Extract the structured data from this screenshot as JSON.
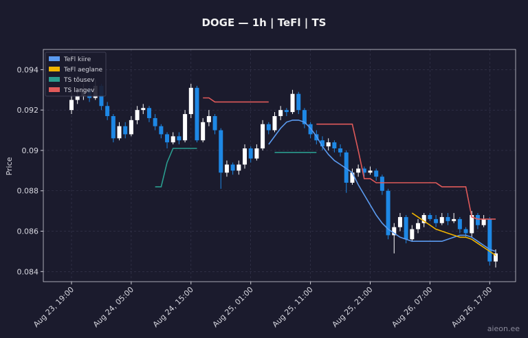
{
  "chart_data": {
    "type": "candlestick",
    "title": "DOGE — 1h  |  TeFl  |  TS",
    "ylabel": "Price",
    "watermark": "aieon.ee",
    "x": [
      "Aug 23, 19:00",
      "Aug 23, 20:00",
      "Aug 23, 21:00",
      "Aug 23, 22:00",
      "Aug 23, 23:00",
      "Aug 24, 00:00",
      "Aug 24, 01:00",
      "Aug 24, 02:00",
      "Aug 24, 03:00",
      "Aug 24, 04:00",
      "Aug 24, 05:00",
      "Aug 24, 06:00",
      "Aug 24, 07:00",
      "Aug 24, 08:00",
      "Aug 24, 09:00",
      "Aug 24, 10:00",
      "Aug 24, 11:00",
      "Aug 24, 12:00",
      "Aug 24, 13:00",
      "Aug 24, 14:00",
      "Aug 24, 15:00",
      "Aug 24, 16:00",
      "Aug 24, 17:00",
      "Aug 24, 18:00",
      "Aug 24, 19:00",
      "Aug 24, 20:00",
      "Aug 24, 21:00",
      "Aug 24, 22:00",
      "Aug 24, 23:00",
      "Aug 25, 00:00",
      "Aug 25, 01:00",
      "Aug 25, 02:00",
      "Aug 25, 03:00",
      "Aug 25, 04:00",
      "Aug 25, 05:00",
      "Aug 25, 06:00",
      "Aug 25, 07:00",
      "Aug 25, 08:00",
      "Aug 25, 09:00",
      "Aug 25, 10:00",
      "Aug 25, 11:00",
      "Aug 25, 12:00",
      "Aug 25, 13:00",
      "Aug 25, 14:00",
      "Aug 25, 15:00",
      "Aug 25, 16:00",
      "Aug 25, 17:00",
      "Aug 25, 18:00",
      "Aug 25, 19:00",
      "Aug 25, 20:00",
      "Aug 25, 21:00",
      "Aug 25, 22:00",
      "Aug 25, 23:00",
      "Aug 26, 00:00",
      "Aug 26, 01:00",
      "Aug 26, 02:00",
      "Aug 26, 03:00",
      "Aug 26, 04:00",
      "Aug 26, 05:00",
      "Aug 26, 06:00",
      "Aug 26, 07:00",
      "Aug 26, 08:00",
      "Aug 26, 09:00",
      "Aug 26, 10:00",
      "Aug 26, 11:00",
      "Aug 26, 12:00",
      "Aug 26, 13:00",
      "Aug 26, 14:00",
      "Aug 26, 15:00",
      "Aug 26, 16:00",
      "Aug 26, 17:00",
      "Aug 26, 18:00"
    ],
    "open": [
      0.092,
      0.0925,
      0.0927,
      0.093,
      0.0926,
      0.0932,
      0.0922,
      0.0917,
      0.0906,
      0.0912,
      0.0908,
      0.0915,
      0.092,
      0.0921,
      0.0916,
      0.0912,
      0.0908,
      0.0904,
      0.0907,
      0.0905,
      0.0918,
      0.0931,
      0.0905,
      0.0914,
      0.0917,
      0.091,
      0.0889,
      0.0893,
      0.089,
      0.0893,
      0.0901,
      0.0896,
      0.0901,
      0.0913,
      0.091,
      0.0917,
      0.092,
      0.0919,
      0.0928,
      0.092,
      0.0913,
      0.0908,
      0.0905,
      0.0902,
      0.0904,
      0.0901,
      0.0899,
      0.0884,
      0.0889,
      0.0891,
      0.0889,
      0.089,
      0.0887,
      0.088,
      0.0858,
      0.0862,
      0.0867,
      0.0856,
      0.0861,
      0.0864,
      0.0868,
      0.0866,
      0.0864,
      0.0867,
      0.0865,
      0.0866,
      0.0861,
      0.0859,
      0.0868,
      0.0863,
      0.0866,
      0.0845
    ],
    "high": [
      0.0929,
      0.093,
      0.0933,
      0.0932,
      0.0935,
      0.0933,
      0.0924,
      0.0918,
      0.0914,
      0.0914,
      0.0917,
      0.0922,
      0.0923,
      0.0922,
      0.0918,
      0.0913,
      0.0909,
      0.0909,
      0.0909,
      0.092,
      0.0933,
      0.0932,
      0.0916,
      0.092,
      0.0918,
      0.0911,
      0.0895,
      0.0894,
      0.0895,
      0.0903,
      0.0902,
      0.0903,
      0.0915,
      0.0914,
      0.0919,
      0.0922,
      0.0921,
      0.093,
      0.0929,
      0.0921,
      0.0914,
      0.091,
      0.0907,
      0.0906,
      0.0905,
      0.0903,
      0.09,
      0.0891,
      0.0893,
      0.0892,
      0.0892,
      0.0891,
      0.0888,
      0.0881,
      0.0864,
      0.0869,
      0.0868,
      0.0863,
      0.0866,
      0.0869,
      0.0869,
      0.0868,
      0.0869,
      0.0869,
      0.0869,
      0.0867,
      0.0862,
      0.087,
      0.0869,
      0.0868,
      0.0867,
      0.0851
    ],
    "low": [
      0.0918,
      0.0923,
      0.0925,
      0.0924,
      0.0925,
      0.092,
      0.0915,
      0.0904,
      0.0905,
      0.0906,
      0.0907,
      0.0913,
      0.0918,
      0.0914,
      0.091,
      0.0906,
      0.0901,
      0.0903,
      0.0903,
      0.0904,
      0.0916,
      0.0904,
      0.0904,
      0.0912,
      0.0908,
      0.0881,
      0.0887,
      0.0888,
      0.0888,
      0.0891,
      0.0894,
      0.0895,
      0.09,
      0.0908,
      0.0909,
      0.0915,
      0.0917,
      0.0918,
      0.0918,
      0.0911,
      0.0906,
      0.0903,
      0.09,
      0.09,
      0.0899,
      0.0897,
      0.0879,
      0.0883,
      0.0887,
      0.0887,
      0.0888,
      0.0885,
      0.0878,
      0.0856,
      0.0849,
      0.086,
      0.0854,
      0.0855,
      0.0859,
      0.0862,
      0.0865,
      0.0862,
      0.0863,
      0.0863,
      0.0864,
      0.0859,
      0.0857,
      0.0857,
      0.0861,
      0.0862,
      0.0843,
      0.0842
    ],
    "close": [
      0.0925,
      0.0927,
      0.093,
      0.0926,
      0.0932,
      0.0922,
      0.0917,
      0.0906,
      0.0912,
      0.0908,
      0.0915,
      0.092,
      0.0921,
      0.0916,
      0.0912,
      0.0908,
      0.0904,
      0.0907,
      0.0905,
      0.0918,
      0.0931,
      0.0905,
      0.0914,
      0.0917,
      0.091,
      0.0889,
      0.0893,
      0.089,
      0.0893,
      0.0901,
      0.0896,
      0.0901,
      0.0913,
      0.091,
      0.0917,
      0.092,
      0.0919,
      0.0928,
      0.092,
      0.0913,
      0.0908,
      0.0905,
      0.0902,
      0.0904,
      0.0901,
      0.0899,
      0.0884,
      0.0889,
      0.0891,
      0.0889,
      0.089,
      0.0887,
      0.088,
      0.0858,
      0.0862,
      0.0867,
      0.0856,
      0.0861,
      0.0864,
      0.0868,
      0.0866,
      0.0864,
      0.0867,
      0.0865,
      0.0866,
      0.0861,
      0.0859,
      0.0868,
      0.0863,
      0.0866,
      0.0845,
      0.0849
    ],
    "up_color": "#ffffff",
    "down_color": "#1e88e5",
    "series": [
      {
        "name": "TeFl kiire",
        "color": "#5b9bf0",
        "values": [
          null,
          null,
          null,
          null,
          null,
          null,
          null,
          null,
          null,
          null,
          null,
          null,
          null,
          null,
          null,
          null,
          null,
          null,
          null,
          null,
          null,
          null,
          null,
          null,
          null,
          null,
          null,
          null,
          null,
          null,
          null,
          null,
          null,
          0.0903,
          0.0907,
          0.0911,
          0.0914,
          0.0915,
          0.0915,
          0.0914,
          0.0911,
          0.0907,
          0.0902,
          0.0898,
          0.0895,
          0.0893,
          0.0891,
          0.0889,
          0.0883,
          0.0878,
          0.0873,
          0.0868,
          0.0864,
          0.0861,
          0.0859,
          0.0857,
          0.0856,
          0.0855,
          0.0855,
          0.0855,
          0.0855,
          0.0855,
          0.0855,
          0.0856,
          0.0857,
          0.0858,
          0.0858,
          0.0857,
          0.0855,
          0.0853,
          0.0851,
          0.085
        ]
      },
      {
        "name": "TeFl aeglane",
        "color": "#f0b400",
        "values": [
          null,
          null,
          null,
          null,
          null,
          null,
          null,
          null,
          null,
          null,
          null,
          null,
          null,
          null,
          null,
          null,
          null,
          null,
          null,
          null,
          null,
          null,
          null,
          null,
          null,
          null,
          null,
          null,
          null,
          null,
          null,
          null,
          null,
          null,
          null,
          null,
          null,
          null,
          null,
          null,
          null,
          null,
          null,
          null,
          null,
          null,
          null,
          null,
          null,
          null,
          null,
          null,
          null,
          null,
          null,
          null,
          null,
          0.0869,
          0.0867,
          0.0865,
          0.0863,
          0.0861,
          0.086,
          0.0859,
          0.0858,
          0.0857,
          0.0857,
          0.0856,
          0.0854,
          0.0852,
          0.085,
          0.0848
        ]
      },
      {
        "name": "TS tõusev",
        "color": "#2a9d8f",
        "values": [
          null,
          null,
          null,
          null,
          null,
          null,
          null,
          null,
          null,
          null,
          null,
          null,
          null,
          null,
          0.0882,
          0.0882,
          0.0894,
          0.0901,
          0.0901,
          0.0901,
          0.0901,
          0.0901,
          null,
          null,
          null,
          null,
          null,
          null,
          null,
          null,
          null,
          null,
          null,
          null,
          0.0899,
          0.0899,
          0.0899,
          0.0899,
          0.0899,
          0.0899,
          0.0899,
          0.0899,
          null,
          null,
          null,
          null,
          null,
          null,
          null,
          null,
          null,
          null,
          null,
          null,
          null,
          null,
          null,
          null,
          null,
          null,
          null,
          null,
          null,
          null,
          null,
          null,
          null,
          null,
          null,
          null,
          null,
          null
        ]
      },
      {
        "name": "TS langev",
        "color": "#e05a5a",
        "values": [
          null,
          null,
          null,
          null,
          null,
          null,
          null,
          null,
          null,
          null,
          null,
          null,
          null,
          null,
          null,
          null,
          null,
          null,
          null,
          null,
          null,
          null,
          0.0926,
          0.0926,
          0.0924,
          0.0924,
          0.0924,
          0.0924,
          0.0924,
          0.0924,
          0.0924,
          0.0924,
          0.0924,
          0.0924,
          null,
          null,
          null,
          null,
          null,
          null,
          null,
          0.0913,
          0.0913,
          0.0913,
          0.0913,
          0.0913,
          0.0913,
          0.0913,
          0.09,
          0.0886,
          0.0886,
          0.0884,
          0.0884,
          0.0884,
          0.0884,
          0.0884,
          0.0884,
          0.0884,
          0.0884,
          0.0884,
          0.0884,
          0.0884,
          0.0882,
          0.0882,
          0.0882,
          0.0882,
          0.0882,
          0.0867,
          0.0866,
          0.0866,
          0.0866,
          0.0866
        ]
      }
    ],
    "ylim": [
      0.0835,
      0.095
    ],
    "yticks": [
      0.084,
      0.086,
      0.088,
      0.09,
      0.092,
      0.094
    ],
    "xticks": [
      "Aug 23, 19:00",
      "Aug 24, 05:00",
      "Aug 24, 15:00",
      "Aug 25, 01:00",
      "Aug 25, 11:00",
      "Aug 25, 21:00",
      "Aug 26, 07:00",
      "Aug 26, 17:00"
    ],
    "yticks_labels_note": null,
    "grid": true,
    "legend": "upper left"
  }
}
